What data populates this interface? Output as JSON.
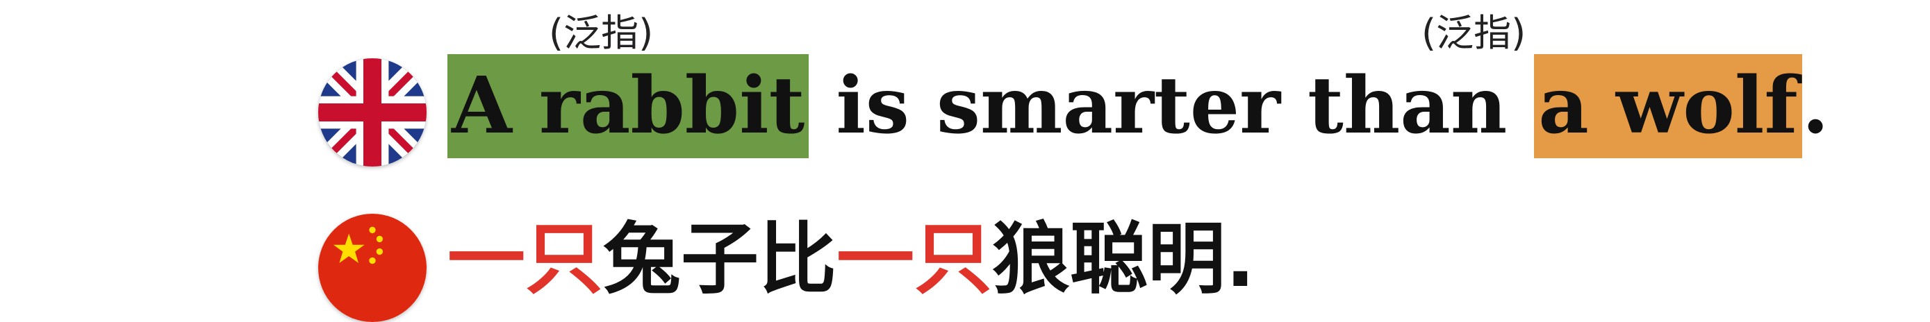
{
  "annotations": {
    "left": "(泛指)",
    "right": "(泛指)"
  },
  "english": {
    "flag_icon": "uk-flag-icon",
    "subject": "A rabbit",
    "middle": " is smarter than ",
    "object": "a wolf",
    "period": ".",
    "subject_highlight_color": "#6d9a45",
    "object_highlight_color": "#e59a45"
  },
  "chinese": {
    "flag_icon": "china-flag-icon",
    "measure_1": "一只",
    "text_1": "兔子比",
    "measure_2": "一只",
    "text_2": "狼聪明.",
    "emphasis_color": "#e0342a"
  }
}
